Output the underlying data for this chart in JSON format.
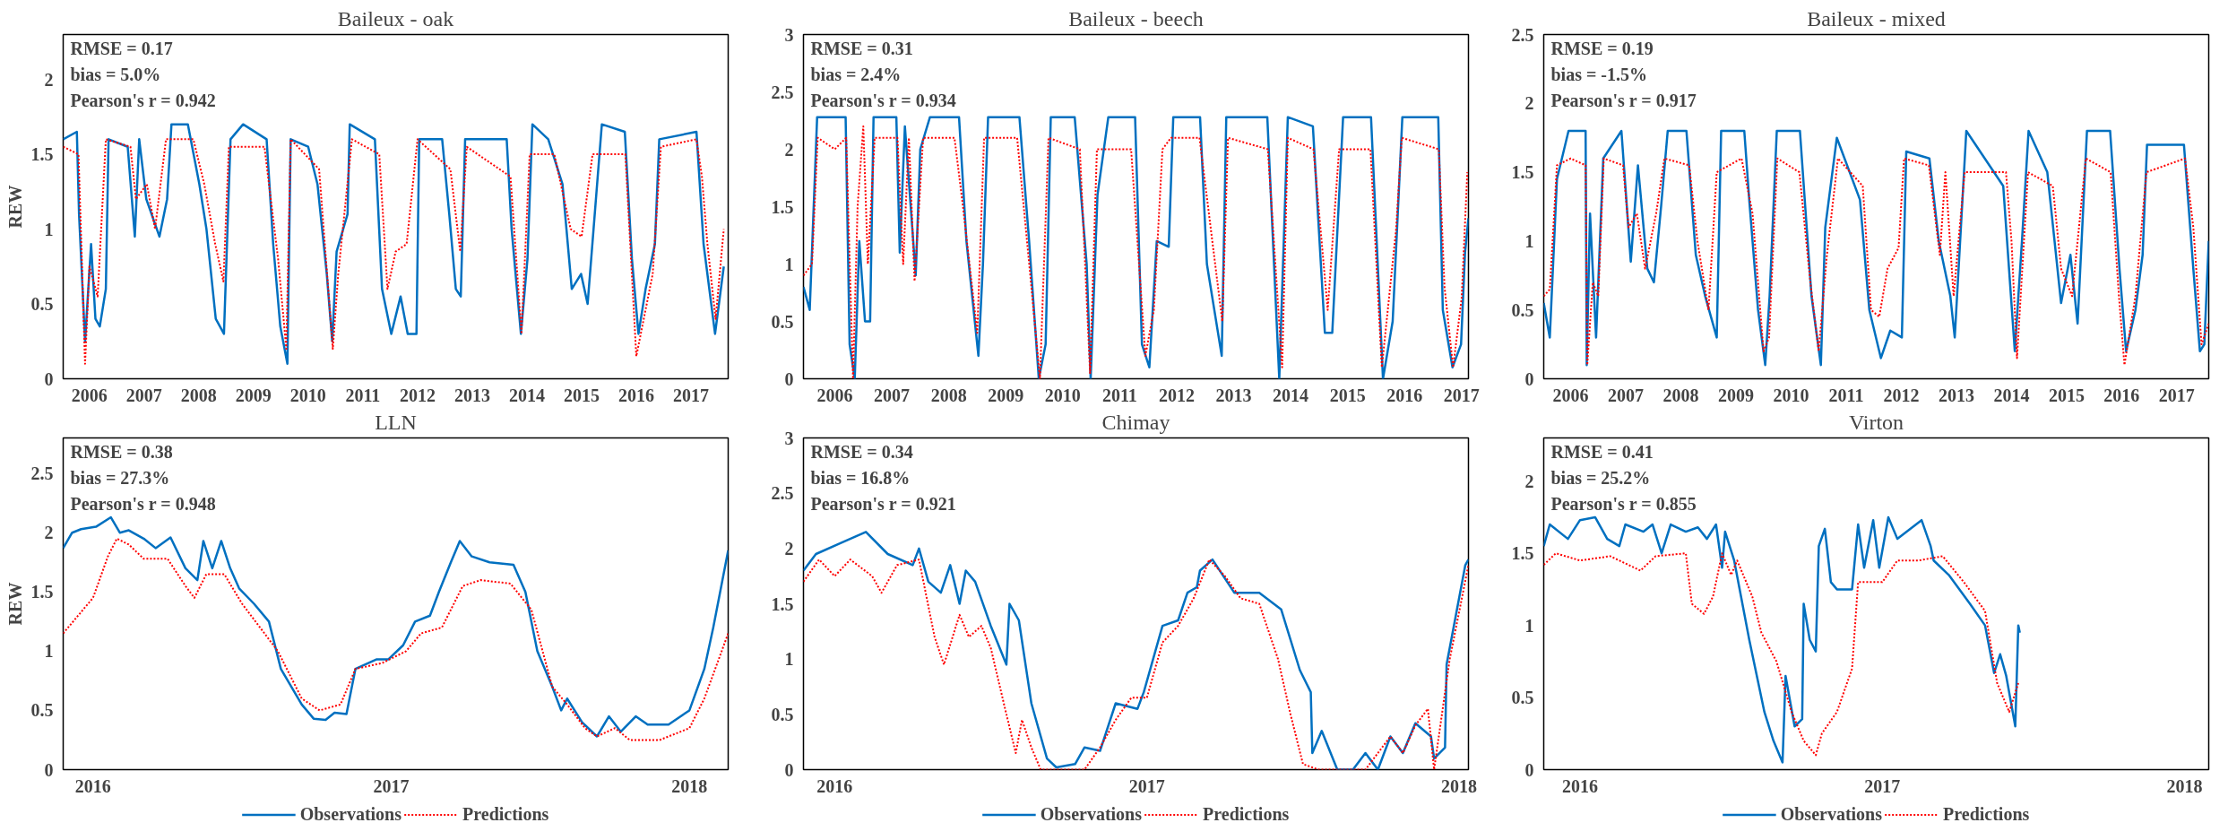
{
  "chart_data": [
    {
      "type": "line",
      "title": "Baileux - oak",
      "ylabel": "REW",
      "annotations": [
        "RMSE = 0.17",
        "bias = 5.0%",
        "Pearson's r = 0.942"
      ],
      "xlim": [
        2005.52,
        2017.68
      ],
      "xticks": [
        2006,
        2007,
        2008,
        2009,
        2010,
        2011,
        2012,
        2013,
        2014,
        2015,
        2016,
        2017
      ],
      "ylim": [
        0,
        2.3
      ],
      "yticks": [
        0,
        0.5,
        1,
        1.5,
        2
      ],
      "grid": false,
      "legend": false,
      "series": [
        {
          "color": "#0070c0",
          "line_style": "solid",
          "x": [
            2005.52,
            2005.77,
            2005.81,
            2005.92,
            2006.03,
            2006.11,
            2006.19,
            2006.3,
            2006.35,
            2006.7,
            2006.83,
            2006.91,
            2007.04,
            2007.28,
            2007.42,
            2007.5,
            2007.8,
            2008.01,
            2008.14,
            2008.31,
            2008.46,
            2008.58,
            2008.81,
            2009.24,
            2009.36,
            2009.49,
            2009.62,
            2009.68,
            2010.0,
            2010.17,
            2010.34,
            2010.44,
            2010.52,
            2010.72,
            2010.76,
            2011.22,
            2011.35,
            2011.52,
            2011.69,
            2011.82,
            2011.98,
            2012.03,
            2012.45,
            2012.58,
            2012.7,
            2012.79,
            2012.87,
            2013.63,
            2013.72,
            2013.89,
            2014.01,
            2014.1,
            2014.39,
            2014.65,
            2014.82,
            2014.99,
            2015.11,
            2015.24,
            2015.37,
            2015.79,
            2015.92,
            2016.04,
            2016.17,
            2016.34,
            2016.42,
            2017.1,
            2017.23,
            2017.44,
            2017.6
          ],
          "values": [
            1.6,
            1.65,
            1.1,
            0.25,
            0.9,
            0.4,
            0.35,
            0.6,
            1.6,
            1.55,
            0.95,
            1.6,
            1.2,
            0.95,
            1.2,
            1.7,
            1.7,
            1.3,
            1.0,
            0.4,
            0.3,
            1.6,
            1.7,
            1.6,
            0.9,
            0.35,
            0.1,
            1.6,
            1.55,
            1.3,
            0.7,
            0.25,
            0.85,
            1.1,
            1.7,
            1.6,
            0.6,
            0.3,
            0.55,
            0.3,
            0.3,
            1.6,
            1.6,
            1.1,
            0.6,
            0.55,
            1.6,
            1.6,
            1.0,
            0.3,
            0.8,
            1.7,
            1.6,
            1.3,
            0.6,
            0.7,
            0.5,
            1.1,
            1.7,
            1.65,
            0.8,
            0.3,
            0.6,
            0.9,
            1.6,
            1.65,
            0.9,
            0.3,
            0.75
          ]
        },
        {
          "color": "#ff0000",
          "line_style": "dotted",
          "x": [
            2005.52,
            2005.8,
            2005.92,
            2006.0,
            2006.15,
            2006.3,
            2006.75,
            2006.85,
            2007.05,
            2007.2,
            2007.4,
            2007.9,
            2008.1,
            2008.3,
            2008.45,
            2008.55,
            2009.2,
            2009.45,
            2009.6,
            2009.68,
            2010.2,
            2010.45,
            2010.55,
            2010.8,
            2011.3,
            2011.45,
            2011.6,
            2011.8,
            2012.0,
            2012.6,
            2012.78,
            2012.9,
            2013.7,
            2013.9,
            2014.05,
            2014.5,
            2014.8,
            2015.0,
            2015.2,
            2015.8,
            2016.0,
            2016.3,
            2016.45,
            2017.1,
            2017.2,
            2017.3,
            2017.45,
            2017.6
          ],
          "values": [
            1.55,
            1.5,
            0.1,
            0.75,
            0.55,
            1.6,
            1.55,
            1.2,
            1.3,
            1.0,
            1.6,
            1.6,
            1.3,
            0.9,
            0.65,
            1.55,
            1.55,
            0.8,
            0.2,
            1.6,
            1.4,
            0.2,
            0.7,
            1.6,
            1.5,
            0.6,
            0.85,
            0.9,
            1.6,
            1.4,
            0.85,
            1.55,
            1.35,
            0.3,
            1.5,
            1.5,
            1.0,
            0.95,
            1.5,
            1.5,
            0.15,
            0.7,
            1.55,
            1.6,
            1.35,
            0.9,
            0.4,
            1.0
          ]
        }
      ]
    },
    {
      "type": "line",
      "title": "Baileux - beech",
      "annotations": [
        "RMSE = 0.31",
        "bias = 2.4%",
        "Pearson's r = 0.934"
      ],
      "xlim": [
        2005.45,
        2017.12
      ],
      "xticks": [
        2006,
        2007,
        2008,
        2009,
        2010,
        2011,
        2012,
        2013,
        2014,
        2015,
        2016,
        2017
      ],
      "ylim": [
        0,
        3
      ],
      "yticks": [
        0,
        0.5,
        1,
        1.5,
        2,
        2.5,
        3
      ],
      "grid": false,
      "legend": false,
      "series": [
        {
          "color": "#0070c0",
          "line_style": "solid",
          "x": [
            2005.45,
            2005.56,
            2005.69,
            2006.19,
            2006.26,
            2006.35,
            2006.43,
            2006.53,
            2006.62,
            2006.68,
            2007.08,
            2007.14,
            2007.23,
            2007.42,
            2007.5,
            2007.67,
            2008.18,
            2008.31,
            2008.52,
            2008.6,
            2008.69,
            2009.24,
            2009.41,
            2009.58,
            2009.7,
            2009.79,
            2010.21,
            2010.42,
            2010.49,
            2010.61,
            2010.8,
            2011.27,
            2011.39,
            2011.52,
            2011.65,
            2011.86,
            2011.94,
            2012.41,
            2012.53,
            2012.79,
            2012.87,
            2013.59,
            2013.8,
            2013.95,
            2014.39,
            2014.6,
            2014.73,
            2014.92,
            2015.41,
            2015.62,
            2015.79,
            2015.96,
            2016.59,
            2016.67,
            2016.84,
            2016.99,
            2017.06,
            2017.12
          ],
          "values": [
            0.8,
            0.6,
            2.28,
            2.28,
            0.3,
            0.0,
            1.2,
            0.5,
            0.5,
            2.28,
            2.28,
            1.1,
            2.2,
            0.9,
            2.0,
            2.28,
            2.28,
            1.2,
            0.2,
            1.0,
            2.28,
            2.28,
            1.2,
            0.0,
            0.3,
            2.28,
            2.28,
            1.0,
            0.0,
            1.6,
            2.28,
            2.28,
            0.3,
            0.1,
            1.2,
            1.15,
            2.28,
            2.28,
            1.0,
            0.2,
            2.28,
            2.28,
            0.0,
            2.28,
            2.2,
            0.4,
            0.4,
            2.28,
            2.28,
            0.0,
            0.5,
            2.28,
            2.28,
            0.6,
            0.1,
            0.3,
            1.1,
            1.4
          ]
        },
        {
          "color": "#ff0000",
          "line_style": "dotted",
          "x": [
            2005.45,
            2005.6,
            2005.7,
            2006.0,
            2006.2,
            2006.32,
            2006.4,
            2006.5,
            2006.58,
            2006.7,
            2007.1,
            2007.2,
            2007.3,
            2007.4,
            2007.55,
            2008.1,
            2008.25,
            2008.5,
            2008.62,
            2009.2,
            2009.45,
            2009.6,
            2009.75,
            2010.3,
            2010.48,
            2010.6,
            2011.2,
            2011.45,
            2011.6,
            2011.75,
            2011.9,
            2012.4,
            2012.55,
            2012.8,
            2012.9,
            2013.6,
            2013.85,
            2013.95,
            2014.4,
            2014.65,
            2014.85,
            2015.4,
            2015.6,
            2015.85,
            2015.95,
            2016.6,
            2016.7,
            2016.85,
            2017.0,
            2017.1
          ],
          "values": [
            0.9,
            1.0,
            2.1,
            2.0,
            2.1,
            0.0,
            1.5,
            2.2,
            1.0,
            2.1,
            2.1,
            1.0,
            2.1,
            0.85,
            2.1,
            2.1,
            1.5,
            0.4,
            2.1,
            2.1,
            0.8,
            0.0,
            2.1,
            2.0,
            0.05,
            2.0,
            2.0,
            0.2,
            0.6,
            2.0,
            2.1,
            2.1,
            1.5,
            0.5,
            2.1,
            2.0,
            0.1,
            2.1,
            2.0,
            0.6,
            2.0,
            2.0,
            0.1,
            1.3,
            2.1,
            2.0,
            0.8,
            0.1,
            0.7,
            1.8
          ]
        }
      ]
    },
    {
      "type": "line",
      "title": "Baileux - mixed",
      "annotations": [
        "RMSE = 0.19",
        "bias = -1.5%",
        "Pearson's r = 0.917"
      ],
      "xlim": [
        2005.51,
        2017.58
      ],
      "xticks": [
        2006,
        2007,
        2008,
        2009,
        2010,
        2011,
        2012,
        2013,
        2014,
        2015,
        2016,
        2017
      ],
      "ylim": [
        0,
        2.5
      ],
      "yticks": [
        0,
        0.5,
        1,
        1.5,
        2,
        2.5
      ],
      "grid": false,
      "legend": false,
      "series": [
        {
          "color": "#0070c0",
          "line_style": "solid",
          "x": [
            2005.51,
            2005.62,
            2005.75,
            2005.96,
            2006.27,
            2006.29,
            2006.35,
            2006.46,
            2006.59,
            2006.92,
            2007.09,
            2007.22,
            2007.39,
            2007.51,
            2007.64,
            2007.76,
            2008.1,
            2008.27,
            2008.44,
            2008.65,
            2008.73,
            2009.15,
            2009.24,
            2009.4,
            2009.53,
            2009.61,
            2009.74,
            2010.16,
            2010.37,
            2010.54,
            2010.62,
            2010.83,
            2011.25,
            2011.42,
            2011.63,
            2011.8,
            2012.01,
            2012.09,
            2012.51,
            2012.68,
            2012.89,
            2012.97,
            2013.18,
            2013.85,
            2014.06,
            2014.19,
            2014.31,
            2014.65,
            2014.9,
            2015.07,
            2015.2,
            2015.37,
            2015.79,
            2015.96,
            2016.08,
            2016.25,
            2016.38,
            2016.46,
            2017.13,
            2017.3,
            2017.42,
            2017.5,
            2017.58
          ],
          "values": [
            0.55,
            0.3,
            1.45,
            1.8,
            1.8,
            0.1,
            1.2,
            0.3,
            1.6,
            1.8,
            0.85,
            1.55,
            0.8,
            0.7,
            1.25,
            1.8,
            1.8,
            0.9,
            0.6,
            0.3,
            1.8,
            1.8,
            1.3,
            0.5,
            0.1,
            0.6,
            1.8,
            1.8,
            0.6,
            0.1,
            1.1,
            1.75,
            1.3,
            0.5,
            0.15,
            0.35,
            0.3,
            1.65,
            1.6,
            1.0,
            0.6,
            0.3,
            1.8,
            1.4,
            0.2,
            1.0,
            1.8,
            1.5,
            0.55,
            0.9,
            0.4,
            1.8,
            1.8,
            0.8,
            0.2,
            0.5,
            0.9,
            1.7,
            1.7,
            0.8,
            0.2,
            0.25,
            1.0
          ]
        },
        {
          "color": "#ff0000",
          "line_style": "dotted",
          "x": [
            2005.51,
            2005.62,
            2005.75,
            2006.0,
            2006.27,
            2006.3,
            2006.4,
            2006.5,
            2006.6,
            2006.95,
            2007.05,
            2007.2,
            2007.35,
            2007.55,
            2007.7,
            2008.15,
            2008.3,
            2008.5,
            2008.65,
            2009.1,
            2009.3,
            2009.5,
            2009.6,
            2009.75,
            2010.15,
            2010.35,
            2010.5,
            2010.65,
            2010.85,
            2011.3,
            2011.45,
            2011.6,
            2011.75,
            2011.95,
            2012.05,
            2012.5,
            2012.7,
            2012.8,
            2012.95,
            2013.15,
            2013.9,
            2014.0,
            2014.1,
            2014.3,
            2014.75,
            2014.9,
            2015.1,
            2015.35,
            2015.8,
            2015.95,
            2016.05,
            2016.25,
            2016.45,
            2017.15,
            2017.3,
            2017.45,
            2017.58
          ],
          "values": [
            0.6,
            0.65,
            1.55,
            1.6,
            1.55,
            0.1,
            0.7,
            0.6,
            1.6,
            1.55,
            1.1,
            1.2,
            0.8,
            1.2,
            1.6,
            1.55,
            1.0,
            0.5,
            1.5,
            1.6,
            1.2,
            0.2,
            0.3,
            1.6,
            1.5,
            0.7,
            0.2,
            0.9,
            1.6,
            1.4,
            0.5,
            0.45,
            0.8,
            0.95,
            1.6,
            1.55,
            0.9,
            1.5,
            0.6,
            1.5,
            1.5,
            1.0,
            0.15,
            1.5,
            1.4,
            0.8,
            0.6,
            1.6,
            1.5,
            0.6,
            0.1,
            0.6,
            1.5,
            1.6,
            1.1,
            0.25,
            0.4
          ]
        }
      ]
    },
    {
      "type": "line",
      "title": "LLN",
      "ylabel": "REW",
      "annotations": [
        "RMSE = 0.38",
        "bias = 27.3%",
        "Pearson's r = 0.948"
      ],
      "xlim": [
        2015.9,
        2018.13
      ],
      "xticks": [
        2016,
        2017,
        2018
      ],
      "ylim": [
        0,
        2.8
      ],
      "yticks": [
        0,
        0.5,
        1,
        1.5,
        2,
        2.5
      ],
      "grid": false,
      "legend": "bottom",
      "series": [
        {
          "name": "Observations",
          "color": "#0070c0",
          "line_style": "solid",
          "x": [
            2015.9,
            2015.93,
            2015.96,
            2016.01,
            2016.06,
            2016.09,
            2016.12,
            2016.17,
            2016.21,
            2016.26,
            2016.31,
            2016.35,
            2016.37,
            2016.4,
            2016.43,
            2016.46,
            2016.49,
            2016.54,
            2016.59,
            2016.63,
            2016.7,
            2016.74,
            2016.78,
            2016.81,
            2016.85,
            2016.88,
            2016.95,
            2016.99,
            2017.04,
            2017.08,
            2017.13,
            2017.16,
            2017.2,
            2017.23,
            2017.27,
            2017.33,
            2017.41,
            2017.45,
            2017.49,
            2017.54,
            2017.57,
            2017.59,
            2017.64,
            2017.69,
            2017.73,
            2017.77,
            2017.82,
            2017.86,
            2017.93,
            2018.0,
            2018.05,
            2018.08,
            2018.13
          ],
          "values": [
            1.87,
            2.0,
            2.03,
            2.05,
            2.13,
            2.0,
            2.02,
            1.95,
            1.87,
            1.96,
            1.7,
            1.6,
            1.93,
            1.7,
            1.93,
            1.7,
            1.53,
            1.4,
            1.25,
            0.85,
            0.55,
            0.43,
            0.42,
            0.48,
            0.47,
            0.85,
            0.93,
            0.93,
            1.05,
            1.25,
            1.3,
            1.5,
            1.75,
            1.93,
            1.8,
            1.75,
            1.73,
            1.5,
            1.0,
            0.7,
            0.5,
            0.6,
            0.4,
            0.28,
            0.45,
            0.32,
            0.45,
            0.38,
            0.38,
            0.5,
            0.85,
            1.2,
            1.85
          ]
        },
        {
          "name": "Predictions",
          "color": "#ff0000",
          "line_style": "dotted",
          "x": [
            2015.9,
            2015.95,
            2016.0,
            2016.05,
            2016.08,
            2016.12,
            2016.17,
            2016.25,
            2016.31,
            2016.34,
            2016.38,
            2016.44,
            2016.5,
            2016.56,
            2016.62,
            2016.7,
            2016.76,
            2016.83,
            2016.88,
            2016.97,
            2017.05,
            2017.1,
            2017.17,
            2017.24,
            2017.3,
            2017.4,
            2017.47,
            2017.54,
            2017.59,
            2017.65,
            2017.69,
            2017.75,
            2017.8,
            2017.9,
            2018.0,
            2018.05,
            2018.13
          ],
          "values": [
            1.15,
            1.3,
            1.45,
            1.8,
            1.95,
            1.9,
            1.78,
            1.78,
            1.55,
            1.45,
            1.65,
            1.65,
            1.4,
            1.2,
            1.0,
            0.6,
            0.5,
            0.55,
            0.85,
            0.9,
            1.0,
            1.15,
            1.2,
            1.55,
            1.6,
            1.57,
            1.35,
            0.7,
            0.55,
            0.35,
            0.28,
            0.35,
            0.25,
            0.25,
            0.35,
            0.6,
            1.15
          ]
        }
      ]
    },
    {
      "type": "line",
      "title": "Chimay",
      "annotations": [
        "RMSE = 0.34",
        "bias = 16.8%",
        "Pearson's r = 0.921"
      ],
      "xlim": [
        2015.9,
        2018.03
      ],
      "xticks": [
        2016,
        2017,
        2018
      ],
      "ylim": [
        0,
        3
      ],
      "yticks": [
        0,
        0.5,
        1,
        1.5,
        2,
        2.5,
        3
      ],
      "grid": false,
      "legend": "bottom",
      "series": [
        {
          "name": "Observations",
          "color": "#0070c0",
          "line_style": "solid",
          "x": [
            2015.9,
            2015.94,
            2016.02,
            2016.1,
            2016.17,
            2016.25,
            2016.27,
            2016.3,
            2016.34,
            2016.37,
            2016.4,
            2016.42,
            2016.45,
            2016.5,
            2016.55,
            2016.56,
            2016.59,
            2016.63,
            2016.68,
            2016.71,
            2016.77,
            2016.8,
            2016.85,
            2016.9,
            2016.97,
            2016.99,
            2017.05,
            2017.1,
            2017.13,
            2017.16,
            2017.17,
            2017.21,
            2017.28,
            2017.36,
            2017.43,
            2017.49,
            2017.525,
            2017.53,
            2017.56,
            2017.61,
            2017.66,
            2017.7,
            2017.74,
            2017.78,
            2017.82,
            2017.86,
            2017.91,
            2017.92,
            2017.955,
            2017.96,
            2018.02,
            2018.03
          ],
          "values": [
            1.8,
            1.95,
            2.05,
            2.15,
            1.95,
            1.85,
            2.0,
            1.7,
            1.6,
            1.85,
            1.5,
            1.8,
            1.7,
            1.3,
            0.95,
            1.5,
            1.35,
            0.6,
            0.1,
            0.02,
            0.05,
            0.2,
            0.17,
            0.6,
            0.55,
            0.7,
            1.3,
            1.35,
            1.6,
            1.65,
            1.8,
            1.9,
            1.6,
            1.6,
            1.45,
            0.9,
            0.7,
            0.15,
            0.35,
            0.0,
            0.0,
            0.15,
            0.0,
            0.3,
            0.15,
            0.42,
            0.3,
            0.1,
            0.2,
            0.95,
            1.85,
            1.9
          ]
        },
        {
          "name": "Predictions",
          "color": "#ff0000",
          "line_style": "dotted",
          "x": [
            2015.9,
            2015.95,
            2016.0,
            2016.05,
            2016.12,
            2016.15,
            2016.2,
            2016.27,
            2016.32,
            2016.35,
            2016.4,
            2016.43,
            2016.47,
            2016.5,
            2016.55,
            2016.58,
            2016.6,
            2016.63,
            2016.66,
            2016.8,
            2016.85,
            2016.9,
            2016.95,
            2017.0,
            2017.05,
            2017.1,
            2017.15,
            2017.2,
            2017.25,
            2017.3,
            2017.36,
            2017.42,
            2017.46,
            2017.5,
            2017.55,
            2017.7,
            2017.78,
            2017.82,
            2017.86,
            2017.9,
            2017.92,
            2017.97,
            2018.03
          ],
          "values": [
            1.7,
            1.9,
            1.75,
            1.9,
            1.75,
            1.6,
            1.85,
            1.9,
            1.2,
            0.95,
            1.4,
            1.2,
            1.3,
            1.1,
            0.5,
            0.15,
            0.45,
            0.2,
            0.0,
            0.0,
            0.2,
            0.45,
            0.65,
            0.65,
            1.15,
            1.3,
            1.55,
            1.9,
            1.75,
            1.55,
            1.5,
            1.0,
            0.5,
            0.05,
            0.0,
            0.0,
            0.3,
            0.15,
            0.4,
            0.55,
            0.0,
            1.0,
            1.85
          ]
        }
      ]
    },
    {
      "type": "line",
      "title": "Virton",
      "annotations": [
        "RMSE = 0.41",
        "bias = 25.2%",
        "Pearson's r = 0.855"
      ],
      "xlim": [
        2015.88,
        2018.08
      ],
      "xticks": [
        2016,
        2017,
        2018
      ],
      "ylim": [
        0,
        2.3
      ],
      "yticks": [
        0,
        0.5,
        1,
        1.5,
        2
      ],
      "grid": false,
      "legend": "bottom",
      "series": [
        {
          "name": "Observations",
          "color": "#0070c0",
          "line_style": "solid",
          "x": [
            2015.88,
            2015.9,
            2015.96,
            2016.0,
            2016.05,
            2016.09,
            2016.13,
            2016.15,
            2016.21,
            2016.24,
            2016.27,
            2016.3,
            2016.35,
            2016.39,
            2016.42,
            2016.45,
            2016.47,
            2016.48,
            2016.51,
            2016.56,
            2016.61,
            2016.64,
            2016.67,
            2016.68,
            2016.71,
            2016.735,
            2016.74,
            2016.76,
            2016.78,
            2016.79,
            2016.81,
            2016.83,
            2016.85,
            2016.9,
            2016.92,
            2016.94,
            2016.97,
            2016.99,
            2017.02,
            2017.05,
            2017.13,
            2017.16,
            2017.17,
            2017.22,
            2017.29,
            2017.34,
            2017.37,
            2017.39,
            2017.41,
            2017.44,
            2017.45,
            2017.455
          ],
          "values": [
            1.55,
            1.7,
            1.6,
            1.73,
            1.75,
            1.6,
            1.55,
            1.7,
            1.65,
            1.7,
            1.5,
            1.7,
            1.65,
            1.68,
            1.6,
            1.7,
            1.4,
            1.65,
            1.45,
            0.9,
            0.4,
            0.2,
            0.05,
            0.65,
            0.3,
            0.35,
            1.15,
            0.9,
            0.82,
            1.55,
            1.67,
            1.3,
            1.25,
            1.25,
            1.7,
            1.4,
            1.73,
            1.4,
            1.75,
            1.6,
            1.73,
            1.55,
            1.45,
            1.35,
            1.15,
            1.0,
            0.67,
            0.8,
            0.65,
            0.3,
            1.0,
            0.95
          ]
        },
        {
          "name": "Predictions",
          "color": "#ff0000",
          "line_style": "dotted",
          "x": [
            2015.88,
            2015.92,
            2016.0,
            2016.1,
            2016.2,
            2016.25,
            2016.35,
            2016.37,
            2016.41,
            2016.44,
            2016.47,
            2016.5,
            2016.52,
            2016.57,
            2016.6,
            2016.65,
            2016.7,
            2016.74,
            2016.78,
            2016.8,
            2016.85,
            2016.9,
            2016.92,
            2017.0,
            2017.05,
            2017.12,
            2017.2,
            2017.27,
            2017.34,
            2017.38,
            2017.42,
            2017.45
          ],
          "values": [
            1.42,
            1.5,
            1.45,
            1.48,
            1.38,
            1.48,
            1.5,
            1.15,
            1.08,
            1.2,
            1.5,
            1.35,
            1.45,
            1.2,
            0.95,
            0.75,
            0.4,
            0.2,
            0.1,
            0.25,
            0.4,
            0.7,
            1.3,
            1.3,
            1.45,
            1.45,
            1.48,
            1.3,
            1.1,
            0.6,
            0.4,
            0.6
          ]
        }
      ]
    }
  ]
}
